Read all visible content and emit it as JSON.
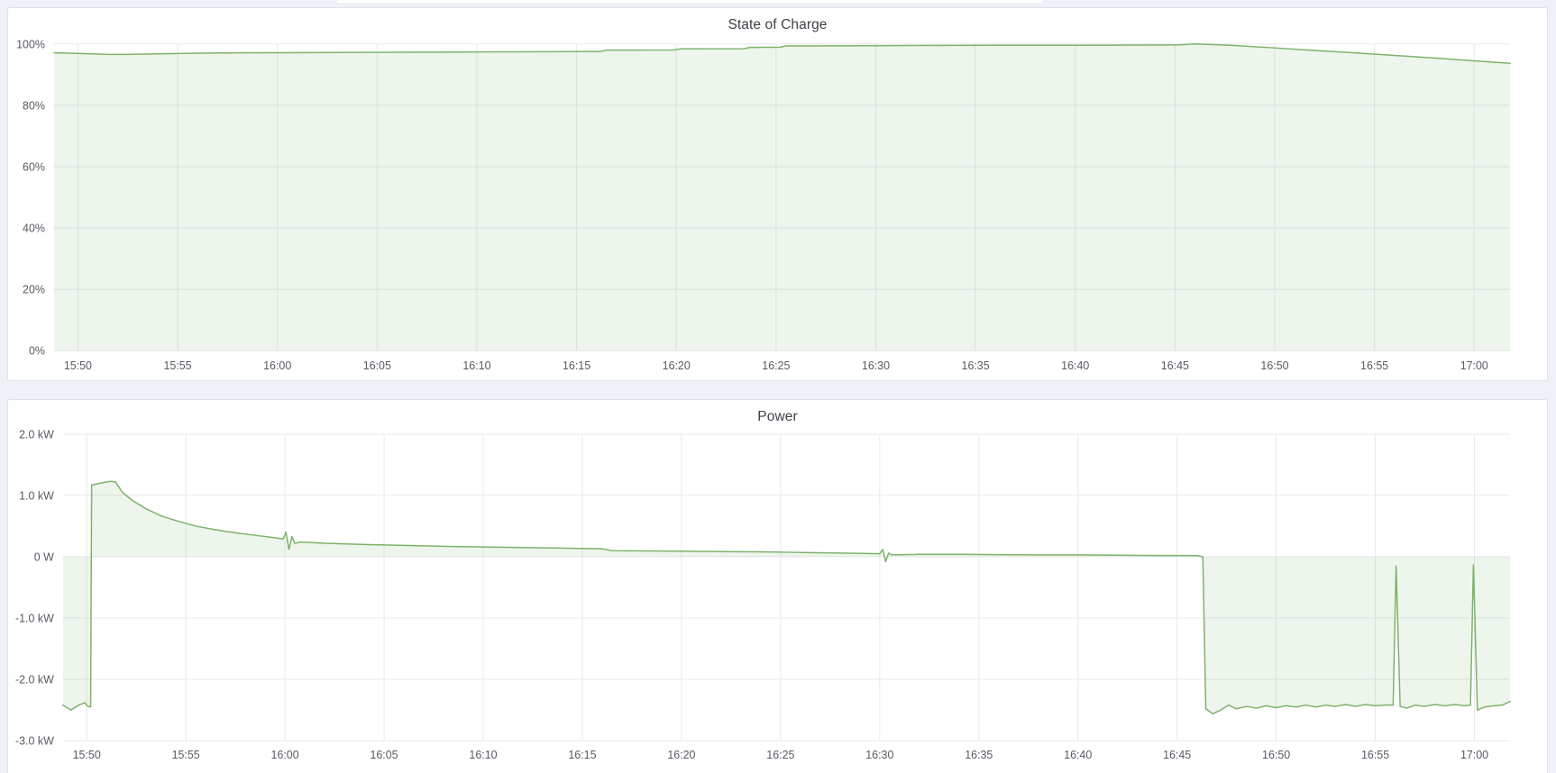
{
  "page": {
    "background": "#eef1f6",
    "panel_background": "#ffffff",
    "panel_border": "#dde2ea",
    "grid_color": "#e7e9ec",
    "axis_text_color": "#565a61"
  },
  "chart_data": [
    {
      "type": "area",
      "title": "State of Charge",
      "xlabel": "",
      "ylabel": "",
      "x_unit": "minutes after 15:00",
      "x_domain": [
        48.8,
        121.8
      ],
      "y_domain": [
        0,
        100
      ],
      "baseline": 0,
      "grid": true,
      "legend": "none",
      "line_color": "#7eb26d",
      "fill_color": "rgba(126,178,109,0.13)",
      "x_ticks": [
        {
          "t": 50,
          "label": "15:50"
        },
        {
          "t": 55,
          "label": "15:55"
        },
        {
          "t": 60,
          "label": "16:00"
        },
        {
          "t": 65,
          "label": "16:05"
        },
        {
          "t": 70,
          "label": "16:10"
        },
        {
          "t": 75,
          "label": "16:15"
        },
        {
          "t": 80,
          "label": "16:20"
        },
        {
          "t": 85,
          "label": "16:25"
        },
        {
          "t": 90,
          "label": "16:30"
        },
        {
          "t": 95,
          "label": "16:35"
        },
        {
          "t": 100,
          "label": "16:40"
        },
        {
          "t": 105,
          "label": "16:45"
        },
        {
          "t": 110,
          "label": "16:50"
        },
        {
          "t": 115,
          "label": "16:55"
        },
        {
          "t": 120,
          "label": "17:00"
        }
      ],
      "y_ticks": [
        {
          "v": 100,
          "label": "100%"
        },
        {
          "v": 80,
          "label": "80%"
        },
        {
          "v": 60,
          "label": "60%"
        },
        {
          "v": 40,
          "label": "40%"
        },
        {
          "v": 20,
          "label": "20%"
        },
        {
          "v": 0,
          "label": "0%"
        }
      ],
      "points": [
        [
          48.8,
          97.1
        ],
        [
          49.5,
          97.0
        ],
        [
          50.5,
          96.8
        ],
        [
          51.5,
          96.6
        ],
        [
          52.5,
          96.6
        ],
        [
          53.5,
          96.7
        ],
        [
          55,
          96.9
        ],
        [
          56.5,
          97.05
        ],
        [
          58,
          97.1
        ],
        [
          60,
          97.15
        ],
        [
          62,
          97.2
        ],
        [
          64,
          97.25
        ],
        [
          66,
          97.3
        ],
        [
          68,
          97.35
        ],
        [
          70,
          97.4
        ],
        [
          72,
          97.45
        ],
        [
          74,
          97.5
        ],
        [
          76.2,
          97.55
        ],
        [
          76.5,
          98.0
        ],
        [
          79.9,
          98.05
        ],
        [
          80.2,
          98.4
        ],
        [
          83.4,
          98.45
        ],
        [
          83.7,
          98.9
        ],
        [
          85.2,
          98.95
        ],
        [
          85.5,
          99.35
        ],
        [
          88,
          99.4
        ],
        [
          92,
          99.5
        ],
        [
          96,
          99.55
        ],
        [
          100,
          99.6
        ],
        [
          104,
          99.65
        ],
        [
          105.3,
          99.7
        ],
        [
          105.9,
          100.0
        ],
        [
          106.5,
          99.9
        ],
        [
          108,
          99.5
        ],
        [
          110,
          98.7
        ],
        [
          112,
          97.9
        ],
        [
          114,
          97.1
        ],
        [
          116,
          96.3
        ],
        [
          118,
          95.4
        ],
        [
          120,
          94.5
        ],
        [
          121.8,
          93.7
        ]
      ]
    },
    {
      "type": "area",
      "title": "Power",
      "xlabel": "",
      "ylabel": "",
      "x_unit": "minutes after 15:00",
      "x_domain": [
        48.8,
        121.8
      ],
      "y_domain": [
        -3,
        2
      ],
      "baseline": 0,
      "grid": true,
      "legend": "none",
      "line_color": "#7eb26d",
      "fill_color": "rgba(126,178,109,0.13)",
      "x_ticks": [
        {
          "t": 50,
          "label": "15:50"
        },
        {
          "t": 55,
          "label": "15:55"
        },
        {
          "t": 60,
          "label": "16:00"
        },
        {
          "t": 65,
          "label": "16:05"
        },
        {
          "t": 70,
          "label": "16:10"
        },
        {
          "t": 75,
          "label": "16:15"
        },
        {
          "t": 80,
          "label": "16:20"
        },
        {
          "t": 85,
          "label": "16:25"
        },
        {
          "t": 90,
          "label": "16:30"
        },
        {
          "t": 95,
          "label": "16:35"
        },
        {
          "t": 100,
          "label": "16:40"
        },
        {
          "t": 105,
          "label": "16:45"
        },
        {
          "t": 110,
          "label": "16:50"
        },
        {
          "t": 115,
          "label": "16:55"
        },
        {
          "t": 120,
          "label": "17:00"
        }
      ],
      "y_ticks": [
        {
          "v": 2,
          "label": "2.0 kW"
        },
        {
          "v": 1,
          "label": "1.0 kW"
        },
        {
          "v": 0,
          "label": "0 W"
        },
        {
          "v": -1,
          "label": "-1.0 kW"
        },
        {
          "v": -2,
          "label": "-2.0 kW"
        },
        {
          "v": -3,
          "label": "-3.0 kW"
        }
      ],
      "points": [
        [
          48.8,
          -2.42
        ],
        [
          49.2,
          -2.5
        ],
        [
          49.6,
          -2.42
        ],
        [
          49.9,
          -2.38
        ],
        [
          50.05,
          -2.44
        ],
        [
          50.2,
          -2.45
        ],
        [
          50.25,
          1.17
        ],
        [
          50.7,
          1.2
        ],
        [
          51.2,
          1.23
        ],
        [
          51.45,
          1.22
        ],
        [
          51.8,
          1.05
        ],
        [
          52.3,
          0.92
        ],
        [
          53,
          0.78
        ],
        [
          53.8,
          0.66
        ],
        [
          54.6,
          0.58
        ],
        [
          55.5,
          0.5
        ],
        [
          56.5,
          0.44
        ],
        [
          57.5,
          0.39
        ],
        [
          58.5,
          0.35
        ],
        [
          59.5,
          0.31
        ],
        [
          59.9,
          0.29
        ],
        [
          60.05,
          0.4
        ],
        [
          60.2,
          0.12
        ],
        [
          60.35,
          0.33
        ],
        [
          60.5,
          0.22
        ],
        [
          60.8,
          0.24
        ],
        [
          62,
          0.22
        ],
        [
          64,
          0.2
        ],
        [
          66,
          0.185
        ],
        [
          68,
          0.17
        ],
        [
          70,
          0.16
        ],
        [
          72,
          0.15
        ],
        [
          74,
          0.14
        ],
        [
          76,
          0.13
        ],
        [
          76.5,
          0.1
        ],
        [
          78,
          0.095
        ],
        [
          80,
          0.09
        ],
        [
          82,
          0.085
        ],
        [
          84,
          0.08
        ],
        [
          86,
          0.07
        ],
        [
          88,
          0.06
        ],
        [
          90,
          0.05
        ],
        [
          90.15,
          0.12
        ],
        [
          90.3,
          -0.08
        ],
        [
          90.45,
          0.06
        ],
        [
          90.6,
          0.03
        ],
        [
          92,
          0.04
        ],
        [
          94,
          0.04
        ],
        [
          96,
          0.035
        ],
        [
          98,
          0.03
        ],
        [
          100,
          0.03
        ],
        [
          102,
          0.025
        ],
        [
          104,
          0.02
        ],
        [
          106,
          0.02
        ],
        [
          106.3,
          0.0
        ],
        [
          106.45,
          -2.48
        ],
        [
          106.8,
          -2.56
        ],
        [
          107.2,
          -2.5
        ],
        [
          107.6,
          -2.42
        ],
        [
          108,
          -2.48
        ],
        [
          108.5,
          -2.44
        ],
        [
          109,
          -2.47
        ],
        [
          109.5,
          -2.43
        ],
        [
          110,
          -2.46
        ],
        [
          110.5,
          -2.43
        ],
        [
          111,
          -2.45
        ],
        [
          111.5,
          -2.42
        ],
        [
          112,
          -2.45
        ],
        [
          112.5,
          -2.42
        ],
        [
          113,
          -2.44
        ],
        [
          113.5,
          -2.41
        ],
        [
          114,
          -2.44
        ],
        [
          114.5,
          -2.41
        ],
        [
          115,
          -2.43
        ],
        [
          115.5,
          -2.42
        ],
        [
          115.9,
          -2.42
        ],
        [
          116.05,
          -0.15
        ],
        [
          116.25,
          -2.44
        ],
        [
          116.6,
          -2.47
        ],
        [
          117,
          -2.42
        ],
        [
          117.5,
          -2.44
        ],
        [
          118,
          -2.41
        ],
        [
          118.5,
          -2.43
        ],
        [
          119,
          -2.41
        ],
        [
          119.5,
          -2.43
        ],
        [
          119.8,
          -2.42
        ],
        [
          119.95,
          -0.13
        ],
        [
          120.15,
          -2.5
        ],
        [
          120.5,
          -2.45
        ],
        [
          121,
          -2.43
        ],
        [
          121.4,
          -2.42
        ],
        [
          121.8,
          -2.36
        ]
      ]
    }
  ]
}
